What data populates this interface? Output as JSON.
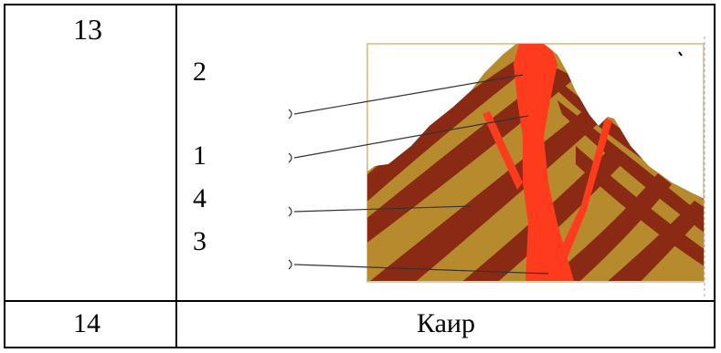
{
  "table": {
    "row1": {
      "number": "13",
      "labels": [
        "2",
        "1",
        "4",
        "3"
      ]
    },
    "row2": {
      "number": "14",
      "answer": "Каир"
    }
  },
  "diagram": {
    "colors": {
      "lava": "#ff3b1e",
      "layer_light": "#b88a2e",
      "layer_dark": "#8b2a14",
      "frame": "#d9b780"
    }
  }
}
